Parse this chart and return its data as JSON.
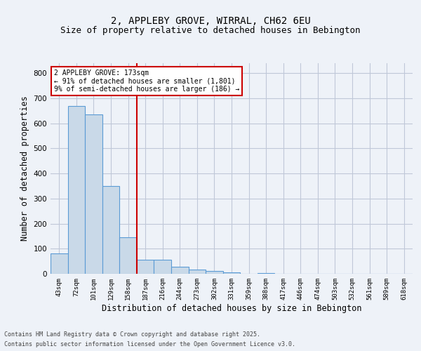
{
  "title_line1": "2, APPLEBY GROVE, WIRRAL, CH62 6EU",
  "title_line2": "Size of property relative to detached houses in Bebington",
  "xlabel": "Distribution of detached houses by size in Bebington",
  "ylabel": "Number of detached properties",
  "categories": [
    "43sqm",
    "72sqm",
    "101sqm",
    "129sqm",
    "158sqm",
    "187sqm",
    "216sqm",
    "244sqm",
    "273sqm",
    "302sqm",
    "331sqm",
    "359sqm",
    "388sqm",
    "417sqm",
    "446sqm",
    "474sqm",
    "503sqm",
    "532sqm",
    "561sqm",
    "589sqm",
    "618sqm"
  ],
  "values": [
    82,
    670,
    635,
    350,
    145,
    57,
    55,
    27,
    18,
    12,
    5,
    0,
    3,
    0,
    0,
    0,
    0,
    0,
    0,
    0,
    0
  ],
  "bar_color": "#c9d9e8",
  "bar_edge_color": "#5b9bd5",
  "grid_color": "#c0c8d8",
  "background_color": "#eef2f8",
  "red_line_x": 4.5,
  "annotation_text": "2 APPLEBY GROVE: 173sqm\n← 91% of detached houses are smaller (1,801)\n9% of semi-detached houses are larger (186) →",
  "annotation_box_color": "#ffffff",
  "annotation_box_edge": "#cc0000",
  "footnote_line1": "Contains HM Land Registry data © Crown copyright and database right 2025.",
  "footnote_line2": "Contains public sector information licensed under the Open Government Licence v3.0.",
  "ylim": [
    0,
    840
  ],
  "yticks": [
    0,
    100,
    200,
    300,
    400,
    500,
    600,
    700,
    800
  ],
  "title_fontsize": 10,
  "subtitle_fontsize": 9,
  "annotation_fontsize": 7,
  "footnote_fontsize": 6
}
